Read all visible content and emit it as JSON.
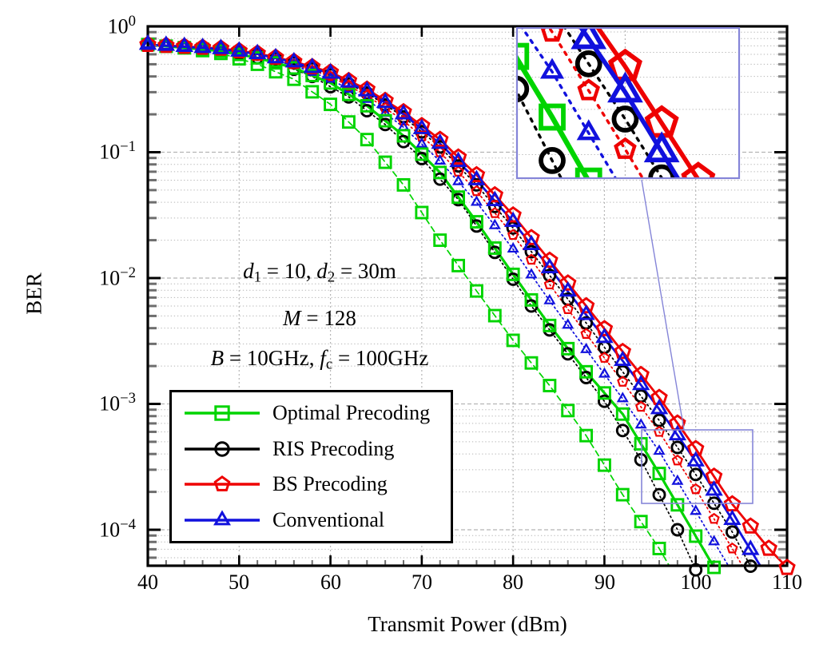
{
  "figure": {
    "x_label": "Transmit Power (dBm)",
    "y_label": "BER",
    "x_ticks": [
      40,
      50,
      60,
      70,
      80,
      90,
      100,
      110
    ],
    "y_tick_labels": [
      "10^0^",
      "10^−1^",
      "10^−2^",
      "10^−3^",
      "10^−4^"
    ],
    "annotation_lines": [
      "*d*~1~ = 10, *d*~2~ = 30m",
      "*M* = 128",
      "*B* = 10GHz, *f*~c~ = 100GHz"
    ]
  },
  "chart_data": {
    "type": "line",
    "title": "",
    "xlabel": "Transmit Power (dBm)",
    "ylabel": "BER",
    "x_range": [
      40,
      110
    ],
    "y_scale": "log",
    "y_range": [
      5e-05,
      1
    ],
    "grid": true,
    "legend_position": "lower left",
    "colors": {
      "optimal": "#00d400",
      "ris": "#000000",
      "bs": "#ee0000",
      "conventional": "#1111dd",
      "inset_box": "#8585d8",
      "grid": "#b5b5b5"
    },
    "legend": [
      {
        "label": "Optimal Precoding",
        "color": "#00d400",
        "marker": "square"
      },
      {
        "label": "RIS Precoding",
        "color": "#000000",
        "marker": "circle"
      },
      {
        "label": "BS Precoding",
        "color": "#ee0000",
        "marker": "pentagon"
      },
      {
        "label": "Conventional",
        "color": "#1111dd",
        "marker": "triangle"
      }
    ],
    "inset": {
      "x_range_dbm": [
        94.1,
        106.2
      ],
      "ber_range": [
        0.00016,
        0.00062
      ],
      "note": "zoom inset, top right, connected to source box"
    },
    "series": [
      {
        "name": "RIS Precoding (markers run)",
        "scheme": "ris",
        "color": "#000000",
        "line": "dotted",
        "marker": "circle",
        "marker_size": 7,
        "points": [
          [
            40,
            0.716
          ],
          [
            46,
            0.67
          ],
          [
            50,
            0.61
          ],
          [
            54,
            0.52
          ],
          [
            58,
            0.4
          ],
          [
            62,
            0.275
          ],
          [
            66,
            0.166
          ],
          [
            70,
            0.089
          ],
          [
            74,
            0.042
          ],
          [
            78,
            0.016
          ],
          [
            82,
            0.006
          ],
          [
            86,
            0.0025
          ],
          [
            90,
            0.00105
          ],
          [
            94,
            0.00036
          ],
          [
            98,
            0.0001
          ],
          [
            100.5,
            4e-05
          ]
        ]
      },
      {
        "name": "Optimal Precoding (markers run)",
        "scheme": "optimal",
        "color": "#00d400",
        "line": "dashed",
        "marker": "square",
        "marker_size": 7,
        "points": [
          [
            40,
            0.716
          ],
          [
            44,
            0.676
          ],
          [
            48,
            0.61
          ],
          [
            52,
            0.5
          ],
          [
            56,
            0.38
          ],
          [
            60,
            0.24
          ],
          [
            64,
            0.126
          ],
          [
            68,
            0.055
          ],
          [
            72,
            0.02
          ],
          [
            76,
            0.0079
          ],
          [
            80,
            0.0032
          ],
          [
            84,
            0.0014
          ],
          [
            88,
            0.00056
          ],
          [
            92,
            0.00019
          ],
          [
            96,
            7.1e-05
          ],
          [
            98,
            4e-05
          ]
        ]
      },
      {
        "name": "RIS Precoding",
        "scheme": "ris",
        "color": "#000000",
        "line": "dotted",
        "marker": "circle",
        "marker_size": 7,
        "points": [
          [
            40,
            0.716
          ],
          [
            48,
            0.661
          ],
          [
            52,
            0.6
          ],
          [
            56,
            0.513
          ],
          [
            60,
            0.412
          ],
          [
            64,
            0.295
          ],
          [
            68,
            0.191
          ],
          [
            72,
            0.11
          ],
          [
            76,
            0.055
          ],
          [
            80,
            0.025
          ],
          [
            84,
            0.0105
          ],
          [
            88,
            0.0044
          ],
          [
            92,
            0.0018
          ],
          [
            96,
            0.00074
          ],
          [
            100,
            0.000275
          ],
          [
            104,
            9.6e-05
          ],
          [
            106.8,
            4e-05
          ]
        ]
      },
      {
        "name": "BS Precoding (markers run)",
        "scheme": "bs",
        "color": "#ee0000",
        "line": "dotted",
        "marker": "pentagon",
        "marker_size": 5.5,
        "points": [
          [
            40,
            0.716
          ],
          [
            48,
            0.653
          ],
          [
            52,
            0.589
          ],
          [
            56,
            0.5
          ],
          [
            60,
            0.4
          ],
          [
            64,
            0.282
          ],
          [
            68,
            0.178
          ],
          [
            72,
            0.1
          ],
          [
            76,
            0.049
          ],
          [
            80,
            0.022
          ],
          [
            84,
            0.0089
          ],
          [
            88,
            0.0036
          ],
          [
            92,
            0.0015
          ],
          [
            96,
            0.0006
          ],
          [
            100,
            0.00021
          ],
          [
            104,
            7.1e-05
          ],
          [
            106,
            4e-05
          ]
        ]
      },
      {
        "name": "Conventional (markers run)",
        "scheme": "conventional",
        "color": "#1111dd",
        "line": "dotted",
        "marker": "triangle",
        "marker_size": 5.5,
        "points": [
          [
            40,
            0.716
          ],
          [
            48,
            0.646
          ],
          [
            52,
            0.575
          ],
          [
            56,
            0.49
          ],
          [
            60,
            0.38
          ],
          [
            64,
            0.263
          ],
          [
            68,
            0.158
          ],
          [
            72,
            0.085
          ],
          [
            76,
            0.04
          ],
          [
            80,
            0.017
          ],
          [
            84,
            0.0066
          ],
          [
            88,
            0.0027
          ],
          [
            92,
            0.0011
          ],
          [
            96,
            0.00042
          ],
          [
            100,
            0.00014
          ],
          [
            104.5,
            4e-05
          ]
        ]
      },
      {
        "name": "Optimal Precoding",
        "scheme": "optimal",
        "color": "#00d400",
        "line": "solid",
        "marker": "square",
        "marker_size": 7,
        "points": [
          [
            40,
            0.716
          ],
          [
            48,
            0.638
          ],
          [
            52,
            0.562
          ],
          [
            56,
            0.468
          ],
          [
            60,
            0.355
          ],
          [
            64,
            0.234
          ],
          [
            68,
            0.135
          ],
          [
            72,
            0.069
          ],
          [
            76,
            0.028
          ],
          [
            80,
            0.0107
          ],
          [
            84,
            0.0042
          ],
          [
            88,
            0.0018
          ],
          [
            92,
            0.00083
          ],
          [
            96,
            0.00028
          ],
          [
            100,
            8.9e-05
          ],
          [
            102.8,
            4e-05
          ]
        ]
      },
      {
        "name": "BS Precoding",
        "scheme": "bs",
        "color": "#ee0000",
        "line": "solid",
        "marker": "pentagon",
        "marker_size": 8.5,
        "points": [
          [
            40,
            0.716
          ],
          [
            48,
            0.668
          ],
          [
            52,
            0.61
          ],
          [
            56,
            0.525
          ],
          [
            60,
            0.432
          ],
          [
            64,
            0.316
          ],
          [
            68,
            0.209
          ],
          [
            72,
            0.126
          ],
          [
            76,
            0.066
          ],
          [
            80,
            0.0316
          ],
          [
            84,
            0.0138
          ],
          [
            88,
            0.006
          ],
          [
            92,
            0.0026
          ],
          [
            96,
            0.00112
          ],
          [
            100,
            0.00044
          ],
          [
            104,
            0.00016
          ],
          [
            108,
            7.1e-05
          ],
          [
            110,
            5e-05
          ]
        ]
      },
      {
        "name": "Conventional",
        "scheme": "conventional",
        "color": "#1111dd",
        "line": "solid",
        "marker": "triangle",
        "marker_size": 8.5,
        "points": [
          [
            40,
            0.716
          ],
          [
            48,
            0.661
          ],
          [
            52,
            0.603
          ],
          [
            56,
            0.519
          ],
          [
            60,
            0.422
          ],
          [
            64,
            0.305
          ],
          [
            68,
            0.2
          ],
          [
            72,
            0.117
          ],
          [
            76,
            0.06
          ],
          [
            80,
            0.028
          ],
          [
            84,
            0.012
          ],
          [
            88,
            0.0051
          ],
          [
            92,
            0.0022
          ],
          [
            96,
            0.00091
          ],
          [
            100,
            0.00035
          ],
          [
            104,
            0.00012
          ],
          [
            108,
            4e-05
          ]
        ]
      }
    ]
  }
}
